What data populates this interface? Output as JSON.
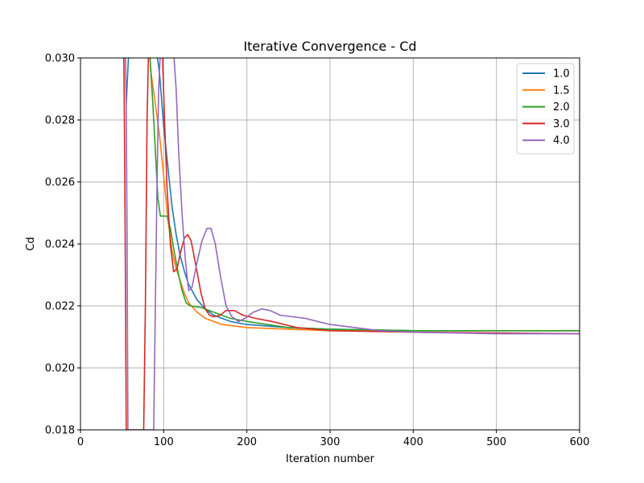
{
  "chart_data": {
    "type": "line",
    "title": "Iterative Convergence - Cd",
    "xlabel": "Iteration number",
    "ylabel": "Cd",
    "xlim": [
      0,
      600
    ],
    "ylim": [
      0.018,
      0.03
    ],
    "xticks": [
      "0",
      "100",
      "200",
      "300",
      "400",
      "500",
      "600"
    ],
    "yticks": [
      "0.018",
      "0.020",
      "0.022",
      "0.024",
      "0.026",
      "0.028",
      "0.030"
    ],
    "grid": true,
    "legend_position": "top-right",
    "series": [
      {
        "name": "1.0",
        "color": "#1f77b4",
        "points": [
          [
            55,
            0.0285
          ],
          [
            58,
            0.0302
          ],
          [
            90,
            0.0305
          ],
          [
            95,
            0.0295
          ],
          [
            100,
            0.0278
          ],
          [
            105,
            0.0265
          ],
          [
            110,
            0.0252
          ],
          [
            115,
            0.0243
          ],
          [
            120,
            0.0236
          ],
          [
            125,
            0.0231
          ],
          [
            130,
            0.0227
          ],
          [
            140,
            0.0222
          ],
          [
            150,
            0.0219
          ],
          [
            160,
            0.0217
          ],
          [
            180,
            0.0215
          ],
          [
            200,
            0.0214
          ],
          [
            250,
            0.0213
          ],
          [
            300,
            0.02125
          ],
          [
            400,
            0.0212
          ],
          [
            600,
            0.0212
          ]
        ]
      },
      {
        "name": "1.5",
        "color": "#ff7f0e",
        "points": [
          [
            82,
            0.0305
          ],
          [
            85,
            0.0295
          ],
          [
            90,
            0.0285
          ],
          [
            95,
            0.0275
          ],
          [
            100,
            0.0262
          ],
          [
            105,
            0.0248
          ],
          [
            110,
            0.0238
          ],
          [
            115,
            0.0232
          ],
          [
            120,
            0.0228
          ],
          [
            125,
            0.0224
          ],
          [
            130,
            0.0221
          ],
          [
            140,
            0.0218
          ],
          [
            150,
            0.0216
          ],
          [
            170,
            0.0214
          ],
          [
            200,
            0.0213
          ],
          [
            250,
            0.02125
          ],
          [
            300,
            0.0212
          ],
          [
            400,
            0.0212
          ],
          [
            600,
            0.0212
          ]
        ]
      },
      {
        "name": "2.0",
        "color": "#2ca02c",
        "points": [
          [
            80,
            0.0305
          ],
          [
            83,
            0.0302
          ],
          [
            87,
            0.0285
          ],
          [
            90,
            0.027
          ],
          [
            93,
            0.0255
          ],
          [
            96,
            0.0249
          ],
          [
            100,
            0.0249
          ],
          [
            104,
            0.0249
          ],
          [
            108,
            0.0245
          ],
          [
            113,
            0.0237
          ],
          [
            118,
            0.023
          ],
          [
            122,
            0.0225
          ],
          [
            127,
            0.0221
          ],
          [
            132,
            0.022
          ],
          [
            145,
            0.02195
          ],
          [
            160,
            0.0218
          ],
          [
            180,
            0.0216
          ],
          [
            200,
            0.0215
          ],
          [
            250,
            0.0213
          ],
          [
            300,
            0.02125
          ],
          [
            400,
            0.0212
          ],
          [
            600,
            0.0212
          ]
        ]
      },
      {
        "name": "3.0",
        "color": "#d62728",
        "points": [
          [
            52,
            0.0305
          ],
          [
            53,
            0.027
          ],
          [
            54,
            0.023
          ],
          [
            55,
            0.018
          ],
          [
            76,
            0.018
          ],
          [
            78,
            0.022
          ],
          [
            80,
            0.028
          ],
          [
            82,
            0.0305
          ],
          [
            98,
            0.0305
          ],
          [
            101,
            0.028
          ],
          [
            104,
            0.0258
          ],
          [
            108,
            0.024
          ],
          [
            112,
            0.0231
          ],
          [
            116,
            0.0232
          ],
          [
            120,
            0.0237
          ],
          [
            125,
            0.0242
          ],
          [
            129,
            0.0243
          ],
          [
            133,
            0.0241
          ],
          [
            138,
            0.0234
          ],
          [
            145,
            0.0224
          ],
          [
            150,
            0.0219
          ],
          [
            155,
            0.0217
          ],
          [
            160,
            0.02165
          ],
          [
            168,
            0.0217
          ],
          [
            175,
            0.02185
          ],
          [
            185,
            0.02185
          ],
          [
            195,
            0.0217
          ],
          [
            210,
            0.0216
          ],
          [
            230,
            0.0215
          ],
          [
            260,
            0.0213
          ],
          [
            300,
            0.0212
          ],
          [
            400,
            0.02115
          ],
          [
            600,
            0.0211
          ]
        ]
      },
      {
        "name": "4.0",
        "color": "#9467bd",
        "points": [
          [
            54,
            0.0302
          ],
          [
            55,
            0.0285
          ],
          [
            56,
            0.024
          ],
          [
            57,
            0.018
          ],
          [
            88,
            0.018
          ],
          [
            90,
            0.022
          ],
          [
            92,
            0.026
          ],
          [
            94,
            0.029
          ],
          [
            96,
            0.0302
          ],
          [
            110,
            0.0305
          ],
          [
            112,
            0.0302
          ],
          [
            115,
            0.029
          ],
          [
            118,
            0.027
          ],
          [
            122,
            0.025
          ],
          [
            126,
            0.0235
          ],
          [
            130,
            0.0225
          ],
          [
            134,
            0.0226
          ],
          [
            140,
            0.0234
          ],
          [
            146,
            0.0241
          ],
          [
            152,
            0.0245
          ],
          [
            157,
            0.0245
          ],
          [
            162,
            0.024
          ],
          [
            168,
            0.023
          ],
          [
            175,
            0.022
          ],
          [
            182,
            0.02165
          ],
          [
            190,
            0.0215
          ],
          [
            198,
            0.0216
          ],
          [
            208,
            0.0218
          ],
          [
            218,
            0.0219
          ],
          [
            228,
            0.02185
          ],
          [
            240,
            0.0217
          ],
          [
            255,
            0.02165
          ],
          [
            270,
            0.0216
          ],
          [
            285,
            0.0215
          ],
          [
            300,
            0.0214
          ],
          [
            330,
            0.0213
          ],
          [
            360,
            0.0212
          ],
          [
            400,
            0.02115
          ],
          [
            500,
            0.0211
          ],
          [
            600,
            0.0211
          ]
        ]
      }
    ]
  }
}
